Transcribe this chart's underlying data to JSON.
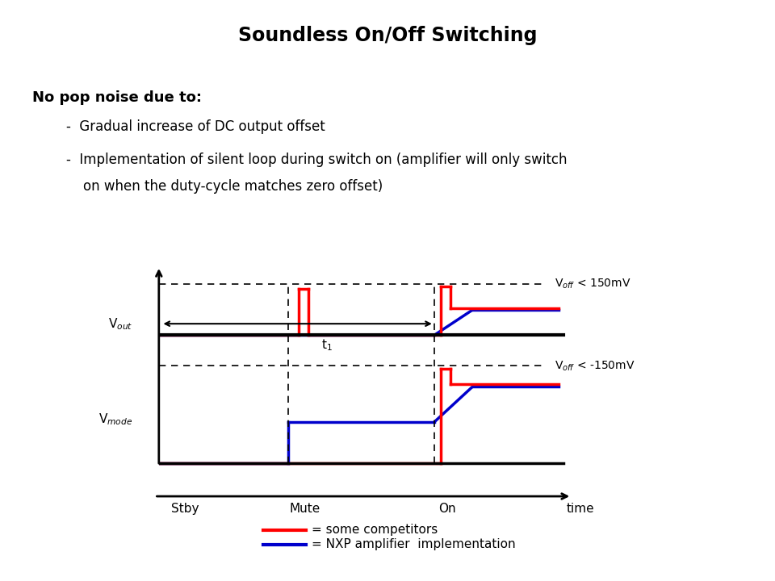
{
  "title": "Soundless On/Off Switching",
  "title_fontsize": 17,
  "title_fontweight": "bold",
  "background_color": "#ffffff",
  "text_color": "#000000",
  "bullet_title": "No pop noise due to:",
  "bullet1": "Gradual increase of DC output offset",
  "bullet2a": "Implementation of silent loop during switch on (amplifier will only switch",
  "bullet2b": "on when the duty-cycle matches zero offset)",
  "red_color": "#ff0000",
  "blue_color": "#0000cc",
  "black_color": "#000000",
  "legend_red": "= some competitors",
  "legend_blue": "= NXP amplifier  implementation",
  "x_labels": [
    "Stby",
    "Mute",
    "On"
  ],
  "voff_pos_label": "V$_{off}$ < 150mV",
  "voff_neg_label": "V$_{off}$ < -150mV",
  "vout_label": "V$_{out}$",
  "vmode_label": "V$_{mode}$",
  "t1_label": "t$_1$",
  "time_label": "time"
}
